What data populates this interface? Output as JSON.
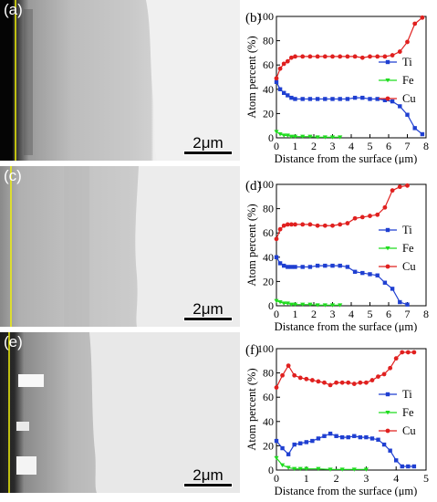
{
  "figure": {
    "panels": [
      {
        "id": "a",
        "label": "(a)",
        "scale_bar": "2μm"
      },
      {
        "id": "c",
        "label": "(c)",
        "scale_bar": "2μm"
      },
      {
        "id": "e",
        "label": "(e)",
        "scale_bar": "2μm"
      }
    ]
  },
  "colors": {
    "Ti": "#1f3fd1",
    "Fe": "#1fdc1f",
    "Cu": "#e0201f",
    "interface_line": "#f2f20a"
  },
  "chart_data": [
    {
      "panel": "(b)",
      "type": "line",
      "xlabel": "Distance from the surface (μm)",
      "ylabel": "Atom percent (%)",
      "xlim": [
        0,
        8
      ],
      "ylim": [
        0,
        100
      ],
      "xticks": [
        0,
        1,
        2,
        3,
        4,
        5,
        6,
        7,
        8
      ],
      "yticks": [
        0,
        20,
        40,
        60,
        80,
        100
      ],
      "legend_position": "right",
      "series": [
        {
          "name": "Ti",
          "marker": "square",
          "x": [
            0,
            0.2,
            0.4,
            0.6,
            0.8,
            1,
            1.4,
            1.8,
            2.2,
            2.6,
            3,
            3.4,
            3.8,
            4.2,
            4.6,
            5,
            5.4,
            5.8,
            6.2,
            6.6,
            7,
            7.4,
            7.8
          ],
          "y": [
            46,
            40,
            37,
            35,
            33,
            32,
            32,
            32,
            32,
            32,
            32,
            32,
            32,
            33,
            33,
            32,
            32,
            31,
            30,
            26,
            19,
            8,
            3
          ]
        },
        {
          "name": "Fe",
          "marker": "triangle",
          "x": [
            0,
            0.2,
            0.4,
            0.6,
            0.8,
            1,
            1.4,
            1.8,
            2.2,
            2.6,
            3,
            3.4
          ],
          "y": [
            5,
            3,
            2,
            2,
            1,
            1,
            1,
            1,
            0.5,
            0.5,
            0.5,
            0.5
          ]
        },
        {
          "name": "Cu",
          "marker": "circle",
          "x": [
            0,
            0.2,
            0.4,
            0.6,
            0.8,
            1,
            1.4,
            1.8,
            2.2,
            2.6,
            3,
            3.4,
            3.8,
            4.2,
            4.6,
            5,
            5.4,
            5.8,
            6.2,
            6.6,
            7,
            7.4,
            7.8
          ],
          "y": [
            49,
            57,
            61,
            63,
            66,
            67,
            67,
            67,
            67,
            67,
            67,
            67,
            67,
            67,
            66,
            67,
            67,
            67,
            68,
            71,
            79,
            94,
            99
          ]
        }
      ]
    },
    {
      "panel": "(d)",
      "type": "line",
      "xlabel": "Distance from the surface (μm)",
      "ylabel": "Atom percent (%)",
      "xlim": [
        0,
        8
      ],
      "ylim": [
        0,
        100
      ],
      "xticks": [
        0,
        1,
        2,
        3,
        4,
        5,
        6,
        7,
        8
      ],
      "yticks": [
        0,
        20,
        40,
        60,
        80,
        100
      ],
      "legend_position": "right",
      "series": [
        {
          "name": "Ti",
          "marker": "square",
          "x": [
            0,
            0.2,
            0.4,
            0.6,
            0.8,
            1,
            1.4,
            1.8,
            2.2,
            2.6,
            3,
            3.4,
            3.8,
            4.2,
            4.6,
            5,
            5.4,
            5.8,
            6.2,
            6.6,
            7
          ],
          "y": [
            40,
            35,
            33,
            32,
            32,
            32,
            32,
            32,
            33,
            33,
            33,
            33,
            32,
            28,
            27,
            26,
            25,
            19,
            14,
            3,
            1
          ]
        },
        {
          "name": "Fe",
          "marker": "triangle",
          "x": [
            0,
            0.2,
            0.4,
            0.6,
            0.8,
            1,
            1.4,
            1.8,
            2.2,
            2.6,
            3,
            3.4
          ],
          "y": [
            4,
            3,
            2,
            2,
            1,
            1,
            1,
            1,
            0.5,
            0.5,
            0.5,
            0.5
          ]
        },
        {
          "name": "Cu",
          "marker": "circle",
          "x": [
            0,
            0.2,
            0.4,
            0.6,
            0.8,
            1,
            1.4,
            1.8,
            2.2,
            2.6,
            3,
            3.4,
            3.8,
            4.2,
            4.6,
            5,
            5.4,
            5.8,
            6.2,
            6.6,
            7
          ],
          "y": [
            55,
            63,
            66,
            67,
            67,
            67,
            67,
            67,
            66,
            66,
            66,
            67,
            68,
            72,
            73,
            74,
            75,
            81,
            95,
            98,
            99
          ]
        }
      ]
    },
    {
      "panel": "(f)",
      "type": "line",
      "xlabel": "Distance from the surface (μm)",
      "ylabel": "Atom percent (%)",
      "xlim": [
        0,
        5
      ],
      "ylim": [
        0,
        100
      ],
      "xticks": [
        0,
        1,
        2,
        3,
        4,
        5
      ],
      "yticks": [
        0,
        20,
        40,
        60,
        80,
        100
      ],
      "legend_position": "right",
      "series": [
        {
          "name": "Ti",
          "marker": "square",
          "x": [
            0,
            0.2,
            0.4,
            0.6,
            0.8,
            1,
            1.2,
            1.4,
            1.6,
            1.8,
            2,
            2.2,
            2.4,
            2.6,
            2.8,
            3,
            3.2,
            3.4,
            3.6,
            3.8,
            4,
            4.2,
            4.4,
            4.6
          ],
          "y": [
            24,
            18,
            13,
            21,
            22,
            23,
            24,
            26,
            28,
            30,
            28,
            27,
            27,
            28,
            27,
            27,
            26,
            25,
            21,
            16,
            8,
            3,
            3,
            3
          ]
        },
        {
          "name": "Fe",
          "marker": "triangle",
          "x": [
            0,
            0.2,
            0.4,
            0.6,
            0.8,
            1,
            1.4,
            1.8,
            2.2,
            2.6,
            3
          ],
          "y": [
            10,
            4,
            2,
            1,
            1,
            1,
            1,
            0.5,
            0.5,
            0.5,
            0.5
          ]
        },
        {
          "name": "Cu",
          "marker": "circle",
          "x": [
            0,
            0.2,
            0.4,
            0.6,
            0.8,
            1,
            1.2,
            1.4,
            1.6,
            1.8,
            2,
            2.2,
            2.4,
            2.6,
            2.8,
            3,
            3.2,
            3.4,
            3.6,
            3.8,
            4,
            4.2,
            4.4,
            4.6
          ],
          "y": [
            68,
            78,
            86,
            78,
            76,
            75,
            74,
            73,
            72,
            70,
            72,
            72,
            72,
            71,
            72,
            72,
            74,
            77,
            79,
            84,
            92,
            97,
            97,
            97
          ]
        }
      ]
    }
  ]
}
